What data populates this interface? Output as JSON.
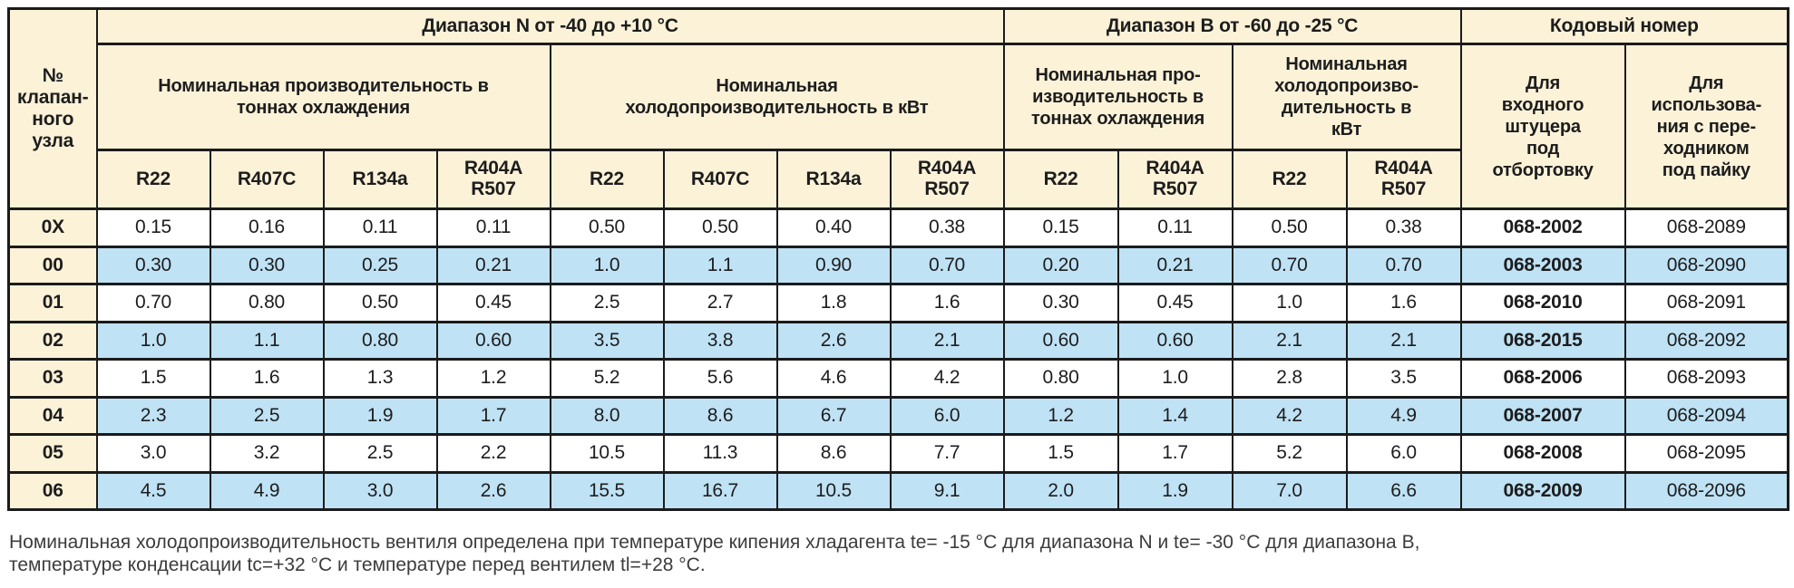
{
  "colors": {
    "header_bg": "#fbf2d8",
    "highlight_row_bg": "#bfe2f5",
    "row_bg": "#ffffff",
    "border": "#1b1b1b",
    "text": "#1d1d1d",
    "footer_text": "#3c3c3c"
  },
  "table": {
    "col_valve_header": "№\nклапан-\nного узла",
    "sections": {
      "range_n": "Диапазон N от -40 до +10 °C",
      "range_b": "Диапазон В от -60 до -25 °C",
      "code": "Кодовый номер"
    },
    "groups": {
      "n_tons": "Номинальная производительность в\nтоннах охлаждения",
      "n_kw": "Номинальная\nхолодопроизводительность в кВт",
      "b_tons": "Номинальная про-\nизводительность в\nтоннах охлаждения",
      "b_kw": "Номинальная\nхолодопроизво-\nдительность в\nкВт",
      "code_flare": "Для\nвходного\nштуцера\nпод\nотбортовку",
      "code_solder": "Для\nиспользова-\nния с пере-\nходником\nпод пайку"
    },
    "refrigerants": [
      "R22",
      "R407C",
      "R134a",
      "R404A\nR507",
      "R22",
      "R407C",
      "R134a",
      "R404A\nR507",
      "R22",
      "R404A\nR507",
      "R22",
      "R404A\nR507"
    ],
    "rows": [
      {
        "label": "0X",
        "n_tons": [
          "0.15",
          "0.16",
          "0.11",
          "0.11"
        ],
        "n_kw": [
          "0.50",
          "0.50",
          "0.40",
          "0.38"
        ],
        "b_tons": [
          "0.15",
          "0.11"
        ],
        "b_kw": [
          "0.50",
          "0.38"
        ],
        "code_flare": "068-2002",
        "code_solder": "068-2089",
        "highlight": false
      },
      {
        "label": "00",
        "n_tons": [
          "0.30",
          "0.30",
          "0.25",
          "0.21"
        ],
        "n_kw": [
          "1.0",
          "1.1",
          "0.90",
          "0.70"
        ],
        "b_tons": [
          "0.20",
          "0.21"
        ],
        "b_kw": [
          "0.70",
          "0.70"
        ],
        "code_flare": "068-2003",
        "code_solder": "068-2090",
        "highlight": true
      },
      {
        "label": "01",
        "n_tons": [
          "0.70",
          "0.80",
          "0.50",
          "0.45"
        ],
        "n_kw": [
          "2.5",
          "2.7",
          "1.8",
          "1.6"
        ],
        "b_tons": [
          "0.30",
          "0.45"
        ],
        "b_kw": [
          "1.0",
          "1.6"
        ],
        "code_flare": "068-2010",
        "code_solder": "068-2091",
        "highlight": false
      },
      {
        "label": "02",
        "n_tons": [
          "1.0",
          "1.1",
          "0.80",
          "0.60"
        ],
        "n_kw": [
          "3.5",
          "3.8",
          "2.6",
          "2.1"
        ],
        "b_tons": [
          "0.60",
          "0.60"
        ],
        "b_kw": [
          "2.1",
          "2.1"
        ],
        "code_flare": "068-2015",
        "code_solder": "068-2092",
        "highlight": true
      },
      {
        "label": "03",
        "n_tons": [
          "1.5",
          "1.6",
          "1.3",
          "1.2"
        ],
        "n_kw": [
          "5.2",
          "5.6",
          "4.6",
          "4.2"
        ],
        "b_tons": [
          "0.80",
          "1.0"
        ],
        "b_kw": [
          "2.8",
          "3.5"
        ],
        "code_flare": "068-2006",
        "code_solder": "068-2093",
        "highlight": false
      },
      {
        "label": "04",
        "n_tons": [
          "2.3",
          "2.5",
          "1.9",
          "1.7"
        ],
        "n_kw": [
          "8.0",
          "8.6",
          "6.7",
          "6.0"
        ],
        "b_tons": [
          "1.2",
          "1.4"
        ],
        "b_kw": [
          "4.2",
          "4.9"
        ],
        "code_flare": "068-2007",
        "code_solder": "068-2094",
        "highlight": true
      },
      {
        "label": "05",
        "n_tons": [
          "3.0",
          "3.2",
          "2.5",
          "2.2"
        ],
        "n_kw": [
          "10.5",
          "11.3",
          "8.6",
          "7.7"
        ],
        "b_tons": [
          "1.5",
          "1.7"
        ],
        "b_kw": [
          "5.2",
          "6.0"
        ],
        "code_flare": "068-2008",
        "code_solder": "068-2095",
        "highlight": false
      },
      {
        "label": "06",
        "n_tons": [
          "4.5",
          "4.9",
          "3.0",
          "2.6"
        ],
        "n_kw": [
          "15.5",
          "16.7",
          "10.5",
          "9.1"
        ],
        "b_tons": [
          "2.0",
          "1.9"
        ],
        "b_kw": [
          "7.0",
          "6.6"
        ],
        "code_flare": "068-2009",
        "code_solder": "068-2096",
        "highlight": true
      }
    ]
  },
  "footer": {
    "line1": "Номинальная холодопроизводительность вентиля определена при температуре кипения хладагента te= -15 °C для диапазона N и te= -30 °C для диапазона В,",
    "line2": "температуре конденсации tc=+32 °C и температуре перед вентилем tl=+28 °C."
  }
}
